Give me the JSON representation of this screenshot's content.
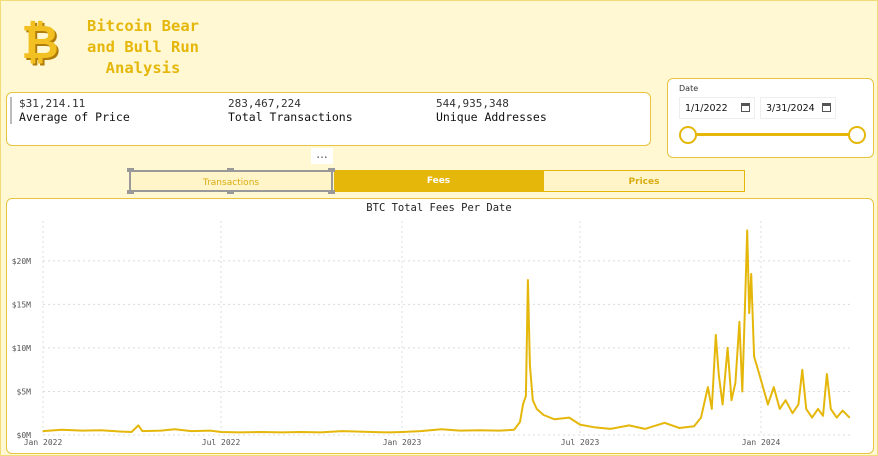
{
  "header": {
    "title_lines": [
      "Bitcoin Bear",
      "and Bull Run",
      "Analysis"
    ],
    "logo_icon": "bitcoin-logo-icon"
  },
  "kpis": [
    {
      "value": "$31,214.11",
      "label": "Average of Price"
    },
    {
      "value": "283,467,224",
      "label": "Total Transactions"
    },
    {
      "value": "544,935,348",
      "label": "Unique Addresses"
    }
  ],
  "date_filter": {
    "label": "Date",
    "start": "1/1/2022",
    "end": "3/31/2024",
    "icon": "calendar-icon"
  },
  "more_options": "...",
  "tabs": [
    {
      "label": "Transactions",
      "active": false
    },
    {
      "label": "Fees",
      "active": true
    },
    {
      "label": "Prices",
      "active": false
    }
  ],
  "colors": {
    "accent": "#e5b70b",
    "background": "#fff8d2"
  },
  "chart_data": {
    "type": "line",
    "title": "BTC Total Fees Per Date",
    "xlabel": "",
    "ylabel": "",
    "ylim": [
      0,
      24000000
    ],
    "y_ticks": [
      {
        "value": 0,
        "label": "$0M"
      },
      {
        "value": 5000000,
        "label": "$5M"
      },
      {
        "value": 10000000,
        "label": "$10M"
      },
      {
        "value": 15000000,
        "label": "$15M"
      },
      {
        "value": 20000000,
        "label": "$20M"
      }
    ],
    "x_ticks": [
      {
        "date": "2022-01-01",
        "label": "Jan 2022"
      },
      {
        "date": "2022-07-01",
        "label": "Jul 2022"
      },
      {
        "date": "2023-01-01",
        "label": "Jan 2023"
      },
      {
        "date": "2023-07-01",
        "label": "Jul 2023"
      },
      {
        "date": "2024-01-01",
        "label": "Jan 2024"
      }
    ],
    "grid": true,
    "legend": "none",
    "series": [
      {
        "color": "#e5b70b",
        "points": [
          [
            "2022-01-01",
            450000
          ],
          [
            "2022-01-20",
            600000
          ],
          [
            "2022-02-10",
            500000
          ],
          [
            "2022-03-01",
            550000
          ],
          [
            "2022-03-20",
            400000
          ],
          [
            "2022-04-01",
            350000
          ],
          [
            "2022-04-08",
            1100000
          ],
          [
            "2022-04-12",
            450000
          ],
          [
            "2022-05-01",
            500000
          ],
          [
            "2022-05-15",
            650000
          ],
          [
            "2022-06-01",
            450000
          ],
          [
            "2022-06-20",
            500000
          ],
          [
            "2022-07-01",
            350000
          ],
          [
            "2022-07-20",
            300000
          ],
          [
            "2022-08-10",
            350000
          ],
          [
            "2022-09-01",
            300000
          ],
          [
            "2022-09-20",
            350000
          ],
          [
            "2022-10-10",
            300000
          ],
          [
            "2022-11-01",
            450000
          ],
          [
            "2022-11-15",
            400000
          ],
          [
            "2022-12-01",
            350000
          ],
          [
            "2022-12-20",
            300000
          ],
          [
            "2023-01-01",
            350000
          ],
          [
            "2023-01-20",
            450000
          ],
          [
            "2023-02-10",
            650000
          ],
          [
            "2023-03-01",
            500000
          ],
          [
            "2023-03-20",
            550000
          ],
          [
            "2023-04-10",
            500000
          ],
          [
            "2023-04-25",
            600000
          ],
          [
            "2023-05-01",
            1500000
          ],
          [
            "2023-05-04",
            3500000
          ],
          [
            "2023-05-07",
            4500000
          ],
          [
            "2023-05-09",
            17800000
          ],
          [
            "2023-05-11",
            8000000
          ],
          [
            "2023-05-14",
            4000000
          ],
          [
            "2023-05-18",
            3000000
          ],
          [
            "2023-05-25",
            2300000
          ],
          [
            "2023-06-05",
            1800000
          ],
          [
            "2023-06-20",
            2000000
          ],
          [
            "2023-07-01",
            1200000
          ],
          [
            "2023-07-15",
            900000
          ],
          [
            "2023-08-01",
            700000
          ],
          [
            "2023-08-20",
            1100000
          ],
          [
            "2023-09-05",
            700000
          ],
          [
            "2023-09-25",
            1400000
          ],
          [
            "2023-10-10",
            800000
          ],
          [
            "2023-10-25",
            1000000
          ],
          [
            "2023-11-01",
            2000000
          ],
          [
            "2023-11-08",
            5500000
          ],
          [
            "2023-11-12",
            3000000
          ],
          [
            "2023-11-16",
            11500000
          ],
          [
            "2023-11-19",
            7000000
          ],
          [
            "2023-11-23",
            3500000
          ],
          [
            "2023-11-28",
            10000000
          ],
          [
            "2023-12-02",
            4000000
          ],
          [
            "2023-12-06",
            6000000
          ],
          [
            "2023-12-10",
            13000000
          ],
          [
            "2023-12-13",
            5000000
          ],
          [
            "2023-12-16",
            16000000
          ],
          [
            "2023-12-18",
            23500000
          ],
          [
            "2023-12-20",
            14000000
          ],
          [
            "2023-12-22",
            18500000
          ],
          [
            "2023-12-25",
            9000000
          ],
          [
            "2023-12-29",
            7500000
          ],
          [
            "2024-01-03",
            5500000
          ],
          [
            "2024-01-08",
            3500000
          ],
          [
            "2024-01-14",
            5500000
          ],
          [
            "2024-01-20",
            3000000
          ],
          [
            "2024-01-26",
            4000000
          ],
          [
            "2024-02-02",
            2500000
          ],
          [
            "2024-02-08",
            3500000
          ],
          [
            "2024-02-12",
            7500000
          ],
          [
            "2024-02-16",
            3000000
          ],
          [
            "2024-02-22",
            2000000
          ],
          [
            "2024-02-28",
            3000000
          ],
          [
            "2024-03-04",
            2200000
          ],
          [
            "2024-03-08",
            7000000
          ],
          [
            "2024-03-12",
            3000000
          ],
          [
            "2024-03-18",
            2000000
          ],
          [
            "2024-03-24",
            2800000
          ],
          [
            "2024-03-31",
            2000000
          ]
        ]
      }
    ]
  }
}
